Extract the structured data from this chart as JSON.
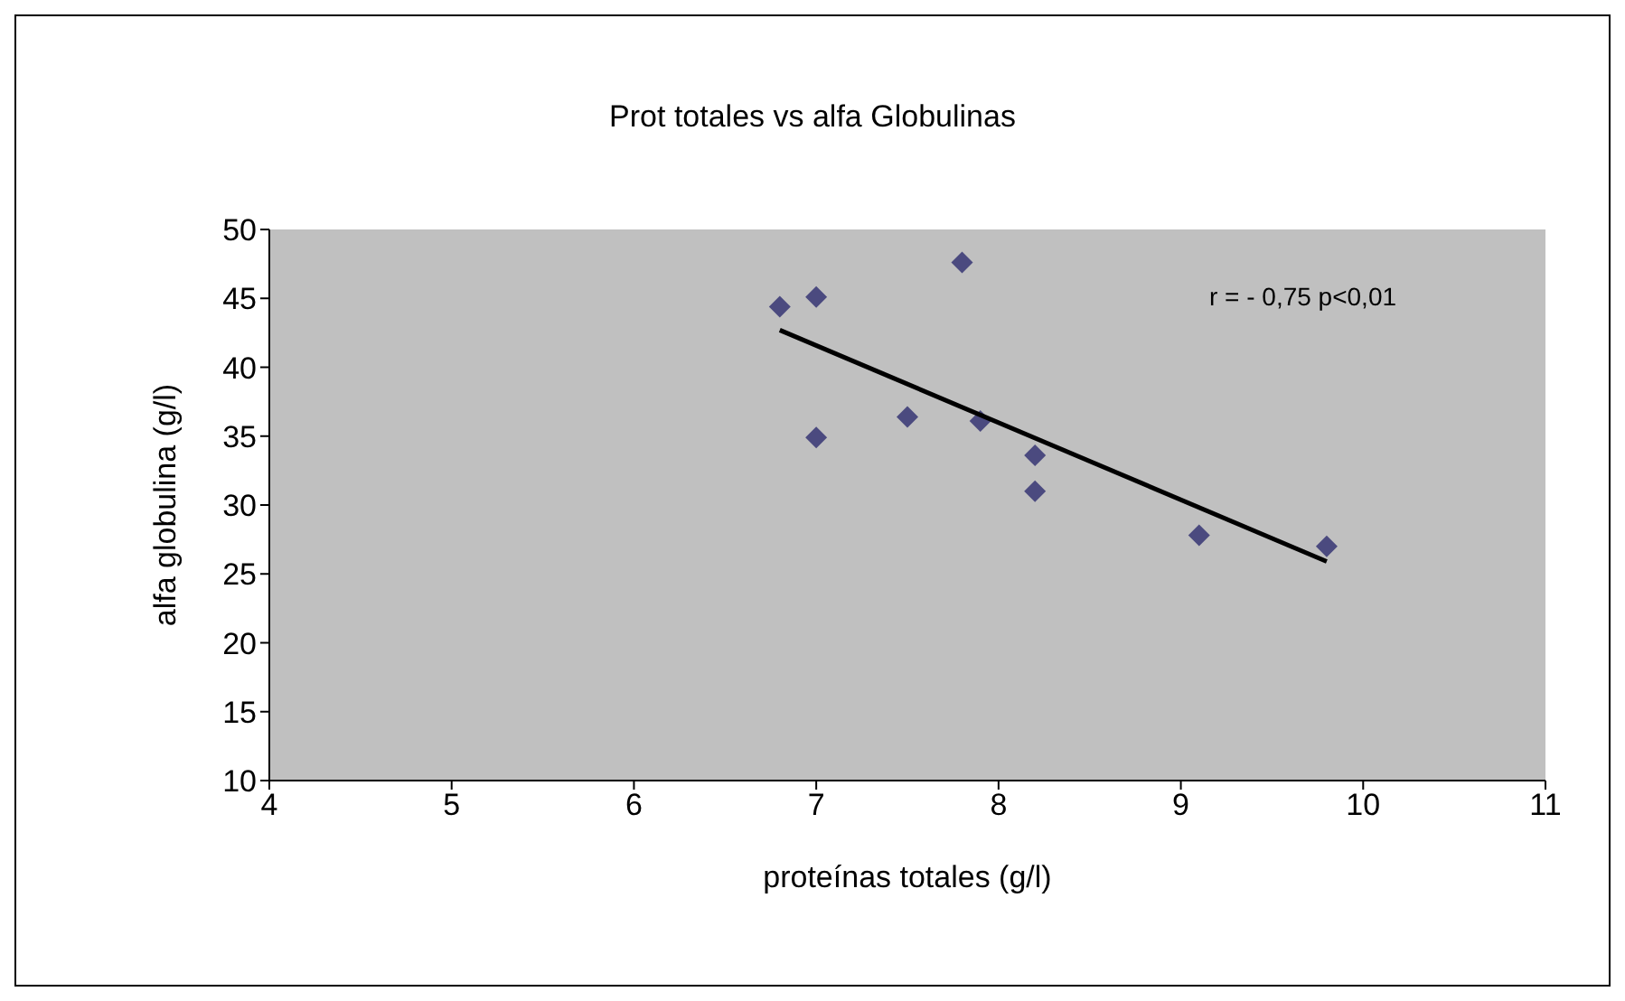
{
  "chart_data": {
    "type": "scatter",
    "title": "Prot totales vs alfa Globulinas",
    "xlabel": "proteínas totales (g/l)",
    "ylabel": "alfa globulina (g/l)",
    "annotations": [
      "r = - 0,75 p<0,01"
    ],
    "xlim": [
      4,
      11
    ],
    "xticks": [
      4,
      5,
      6,
      7,
      8,
      9,
      10,
      11
    ],
    "ylim": [
      10,
      50
    ],
    "yticks": [
      10,
      15,
      20,
      25,
      30,
      35,
      40,
      45,
      50
    ],
    "grid": false,
    "marker": "diamond",
    "series": [
      {
        "color": "#4b4a7f",
        "x": [
          6.8,
          7.0,
          7.0,
          7.5,
          7.8,
          7.9,
          8.2,
          8.2,
          9.1,
          9.8
        ],
        "values": [
          44.4,
          45.1,
          34.9,
          36.4,
          47.6,
          36.1,
          33.6,
          31.0,
          27.8,
          27.0
        ]
      },
      {
        "type": "line",
        "color": "#000000",
        "x": [
          6.8,
          9.8
        ],
        "values": [
          42.7,
          25.9
        ],
        "marker": "none",
        "line_style": "solid"
      }
    ]
  }
}
